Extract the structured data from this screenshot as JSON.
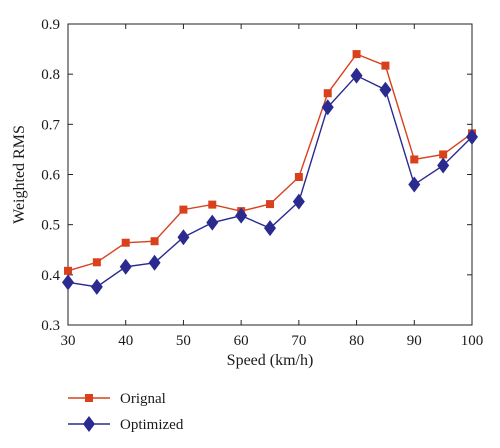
{
  "chart_data": {
    "type": "line",
    "xlabel": "Speed (km/h)",
    "ylabel": "Weighted RMS",
    "x": [
      30,
      35,
      40,
      45,
      50,
      55,
      60,
      65,
      70,
      75,
      80,
      85,
      90,
      95,
      100
    ],
    "xlim": [
      30,
      100
    ],
    "ylim": [
      0.3,
      0.9
    ],
    "xticks": [
      30,
      40,
      50,
      60,
      70,
      80,
      90,
      100
    ],
    "yticks": [
      0.3,
      0.4,
      0.5,
      0.6,
      0.7,
      0.8,
      0.9
    ],
    "grid": false,
    "legend_position": "bottom-left, below plot",
    "series": [
      {
        "name": "Orignal",
        "color": "#d9401c",
        "marker": "square",
        "values": [
          0.408,
          0.425,
          0.464,
          0.467,
          0.53,
          0.54,
          0.527,
          0.541,
          0.595,
          0.762,
          0.84,
          0.817,
          0.63,
          0.64,
          0.682
        ]
      },
      {
        "name": "Optimized",
        "color": "#2b2a8f",
        "marker": "diamond",
        "values": [
          0.385,
          0.376,
          0.416,
          0.424,
          0.475,
          0.504,
          0.518,
          0.493,
          0.546,
          0.734,
          0.797,
          0.769,
          0.58,
          0.618,
          0.675
        ]
      }
    ]
  }
}
